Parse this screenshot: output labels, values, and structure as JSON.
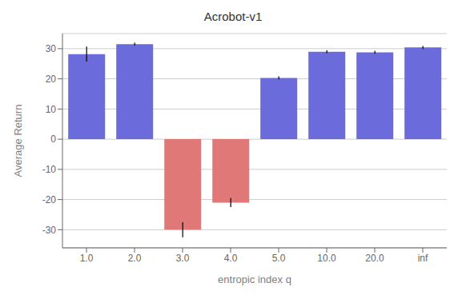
{
  "chart_data": {
    "type": "bar",
    "title": "Acrobot-v1",
    "xlabel": "entropic index q",
    "ylabel": "Average Return",
    "categories": [
      "1.0",
      "2.0",
      "3.0",
      "4.0",
      "5.0",
      "10.0",
      "20.0",
      "inf"
    ],
    "values": [
      28.2,
      31.5,
      -30.0,
      -21.0,
      20.3,
      29.0,
      28.8,
      30.4
    ],
    "errors": [
      2.5,
      0.5,
      2.5,
      1.5,
      0.5,
      0.5,
      0.5,
      0.5
    ],
    "colors": [
      "#6b6bdb",
      "#6b6bdb",
      "#e07878",
      "#e07878",
      "#6b6bdb",
      "#6b6bdb",
      "#6b6bdb",
      "#6b6bdb"
    ],
    "ylim": [
      -36,
      35
    ],
    "yticks": [
      -30,
      -20,
      -10,
      0,
      10,
      20,
      30
    ],
    "grid": true
  }
}
